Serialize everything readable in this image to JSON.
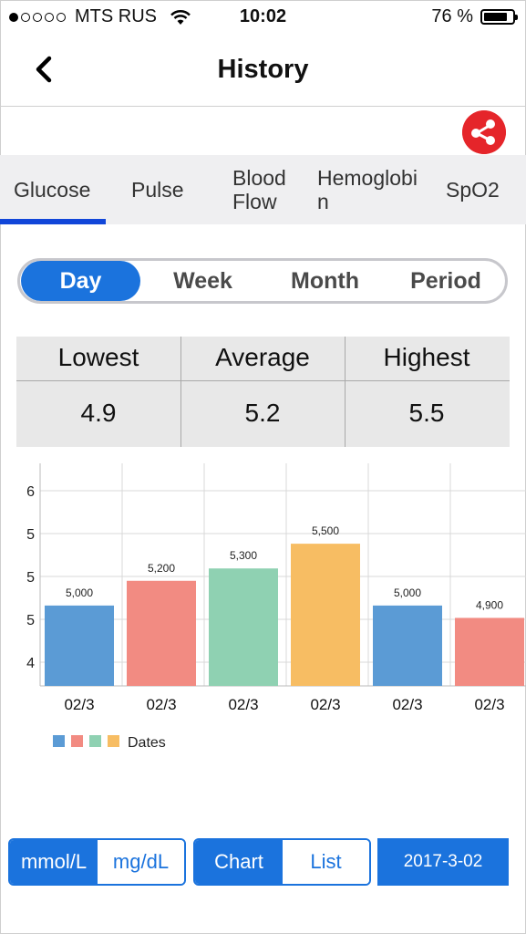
{
  "status_bar": {
    "carrier": "MTS RUS",
    "time": "10:02",
    "battery": "76 %"
  },
  "header": {
    "title": "History"
  },
  "tabs": [
    {
      "label": "Glucose"
    },
    {
      "label": "Pulse"
    },
    {
      "label": "Blood\nFlow"
    },
    {
      "label": "Hemoglobi\nn"
    },
    {
      "label": "SpO2"
    }
  ],
  "period_tabs": [
    {
      "label": "Day"
    },
    {
      "label": "Week"
    },
    {
      "label": "Month"
    },
    {
      "label": "Period"
    }
  ],
  "stats": {
    "lowest_label": "Lowest",
    "lowest_value": "4.9",
    "average_label": "Average",
    "average_value": "5.2",
    "highest_label": "Highest",
    "highest_value": "5.5"
  },
  "chart_data": {
    "type": "bar",
    "categories": [
      "02/3",
      "02/3",
      "02/3",
      "02/3",
      "02/3",
      "02/3"
    ],
    "values": [
      5.0,
      5.2,
      5.3,
      5.5,
      5.0,
      4.9
    ],
    "data_labels": [
      "5,000",
      "5,200",
      "5,300",
      "5,500",
      "5,000",
      "4,900"
    ],
    "y_tick_labels": [
      "6",
      "5",
      "5",
      "5",
      "4"
    ],
    "ylim": [
      4.35,
      6.15
    ],
    "bar_colors": [
      "#5b9bd5",
      "#f28b82",
      "#8fd1b2",
      "#f7bd63",
      "#5b9bd5",
      "#f28b82"
    ],
    "legend": {
      "label": "Dates",
      "colors": [
        "#5b9bd5",
        "#f28b82",
        "#8fd1b2",
        "#f7bd63"
      ],
      "placement": "bottom-left"
    },
    "grid": true
  },
  "units": {
    "mmol_label": "mmol/L",
    "mgdl_label": "mg/dL"
  },
  "view_toggle": {
    "chart_label": "Chart",
    "list_label": "List"
  },
  "date_button": {
    "label": "2017-3-02"
  },
  "colors": {
    "accent": "#1b73dd",
    "share": "#e5252a",
    "tab_indicator": "#1146d9"
  }
}
